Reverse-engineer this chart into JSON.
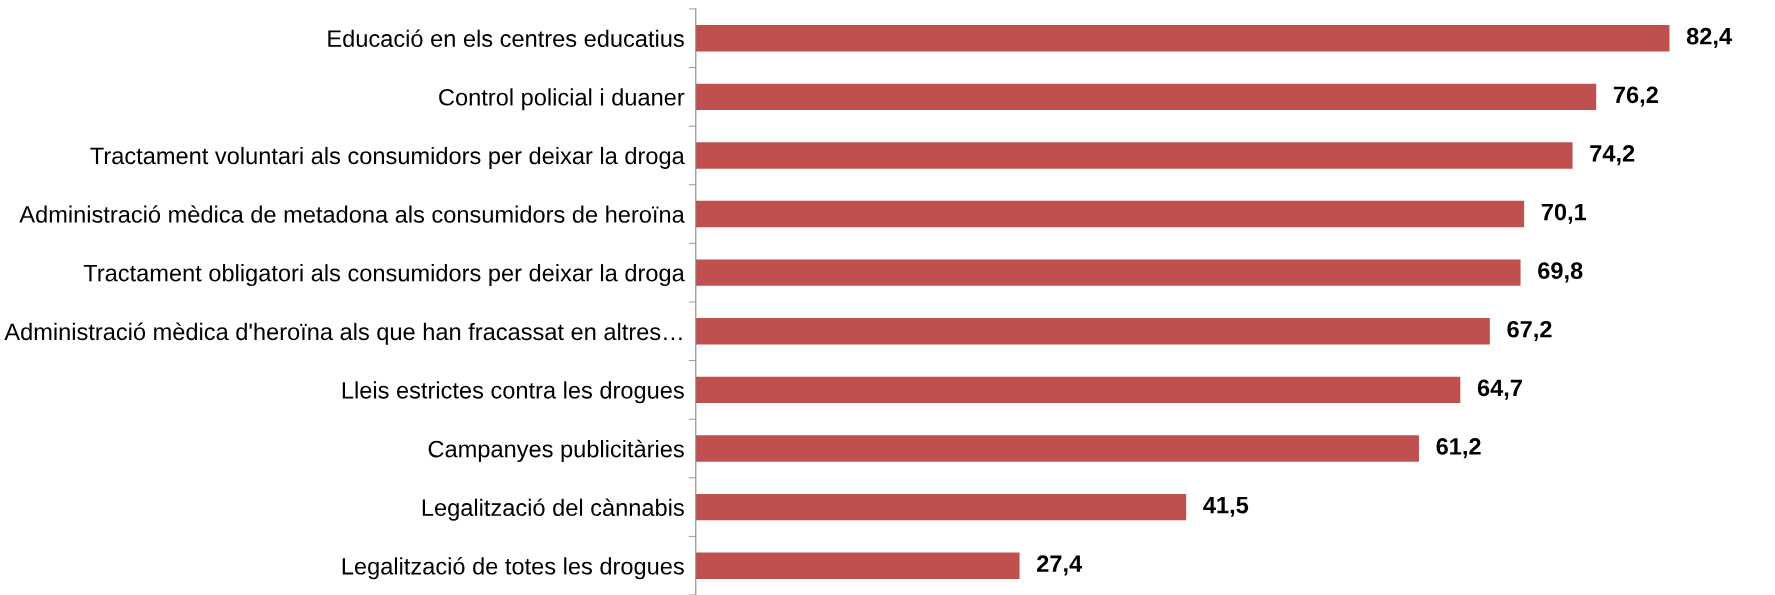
{
  "chart_data": {
    "type": "bar",
    "orientation": "horizontal",
    "categories": [
      "Educació en els centres educatius",
      "Control policial i duaner",
      "Tractament voluntari als consumidors per deixar la droga",
      "Administració mèdica de metadona als consumidors de heroïna",
      "Tractament obligatori als consumidors per deixar la droga",
      "Administració mèdica d'heroïna als que han fracassat en altres…",
      "Lleis estrictes contra les drogues",
      "Campanyes publicitàries",
      "Legalització del cànnabis",
      "Legalització de totes les drogues"
    ],
    "values": [
      82.4,
      76.2,
      74.2,
      70.1,
      69.8,
      67.2,
      64.7,
      61.2,
      41.5,
      27.4
    ],
    "value_labels": [
      "82,4",
      "76,2",
      "74,2",
      "70,1",
      "69,8",
      "67,2",
      "64,7",
      "61,2",
      "41,5",
      "27,4"
    ],
    "color": "#c0504d",
    "grid": false,
    "legend": false,
    "tick_labels": "y"
  }
}
